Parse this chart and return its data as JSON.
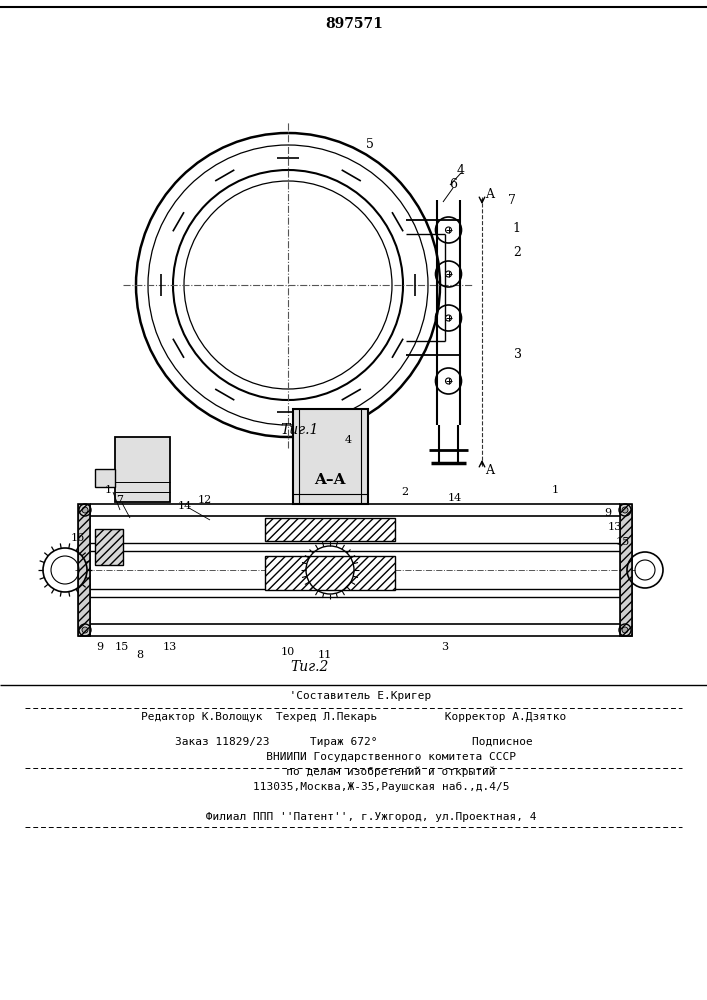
{
  "patent_number": "897571",
  "fig1_label": "Τиг.1",
  "fig2_label": "Τиг.2",
  "section_label": "A–A",
  "t1": "  'Составитель Е.Кригер",
  "t2": "Редактор К.Волощук  Техред Л.Пекарь          Корректор А.Дзятко",
  "t3": "Заказ 11829/23      Тираж 672°              Подписное",
  "t4": "           ВНИИПИ Государственного комитета СССР",
  "t5": "           по делам изобретений и открытий",
  "t6": "        113035,Москва,Ж-35,Раушская наб.,д.4/5",
  "t7": "     Филиал ППП ''Патент'', г.Ужгород, ул.Проектная, 4",
  "bg_color": "#ffffff",
  "lc": "#000000"
}
